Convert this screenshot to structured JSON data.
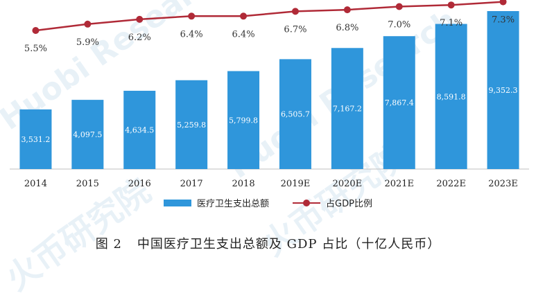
{
  "chart_data": {
    "type": "bar+line",
    "categories": [
      "2014",
      "2015",
      "2016",
      "2017",
      "2018",
      "2019E",
      "2020E",
      "2021E",
      "2022E",
      "2023E"
    ],
    "series": [
      {
        "name": "医疗卫生支出总额",
        "type": "bar",
        "values": [
          3531.2,
          4097.5,
          4634.5,
          5259.8,
          5799.8,
          6505.7,
          7167.2,
          7867.4,
          8591.8,
          9352.3
        ],
        "labels": [
          "3,531.2",
          "4,097.5",
          "4,634.5",
          "5,259.8",
          "5,799.8",
          "6,505.7",
          "7,167.2",
          "7,867.4",
          "8,591.8",
          "9,352.3"
        ]
      },
      {
        "name": "占GDP比例",
        "type": "line",
        "values": [
          5.5,
          5.9,
          6.2,
          6.4,
          6.4,
          6.7,
          6.8,
          7.0,
          7.1,
          7.3
        ],
        "labels": [
          "5.5%",
          "5.9%",
          "6.2%",
          "6.4%",
          "6.4%",
          "6.7%",
          "6.8%",
          "7.0%",
          "7.1%",
          "7.3%"
        ]
      }
    ],
    "colors": {
      "bar": "#2f96db",
      "line": "#b02a37",
      "bar_label": "#ffffff",
      "axis": "#bfbfbf"
    },
    "legend": "bottom-center",
    "grid": false
  },
  "caption": {
    "figure": "图 2",
    "text": "中国医疗卫生支出总额及 GDP 占比（十亿人民币）"
  },
  "watermark": {
    "text": "Huobi Research",
    "text_cn": "火币研究院"
  }
}
